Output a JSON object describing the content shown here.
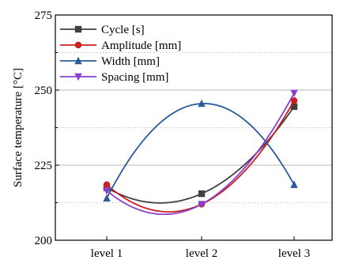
{
  "chart_data": {
    "type": "line",
    "title": "",
    "xlabel": "",
    "ylabel": "Surface temperature [°C]",
    "categories": [
      "level 1",
      "level 2",
      "level 3"
    ],
    "ylim": [
      200,
      275
    ],
    "yticks": [
      200,
      225,
      250,
      275
    ],
    "grid": "horizontal dotted",
    "legend": "top-left",
    "series": [
      {
        "name": "Cycle [s]",
        "values": [
          217.5,
          215.5,
          244.5
        ],
        "color": "#404040",
        "marker": "square"
      },
      {
        "name": "Amplitude [mm]",
        "values": [
          218.5,
          212.0,
          246.5
        ],
        "color": "#cc1f1f",
        "marker": "circle"
      },
      {
        "name": "Width [mm]",
        "values": [
          214.0,
          245.5,
          218.5
        ],
        "color": "#2a5a9a",
        "marker": "triangle-up"
      },
      {
        "name": "Spacing [mm]",
        "values": [
          216.5,
          212.0,
          249.0
        ],
        "color": "#8b3fcf",
        "marker": "triangle-down"
      }
    ]
  }
}
